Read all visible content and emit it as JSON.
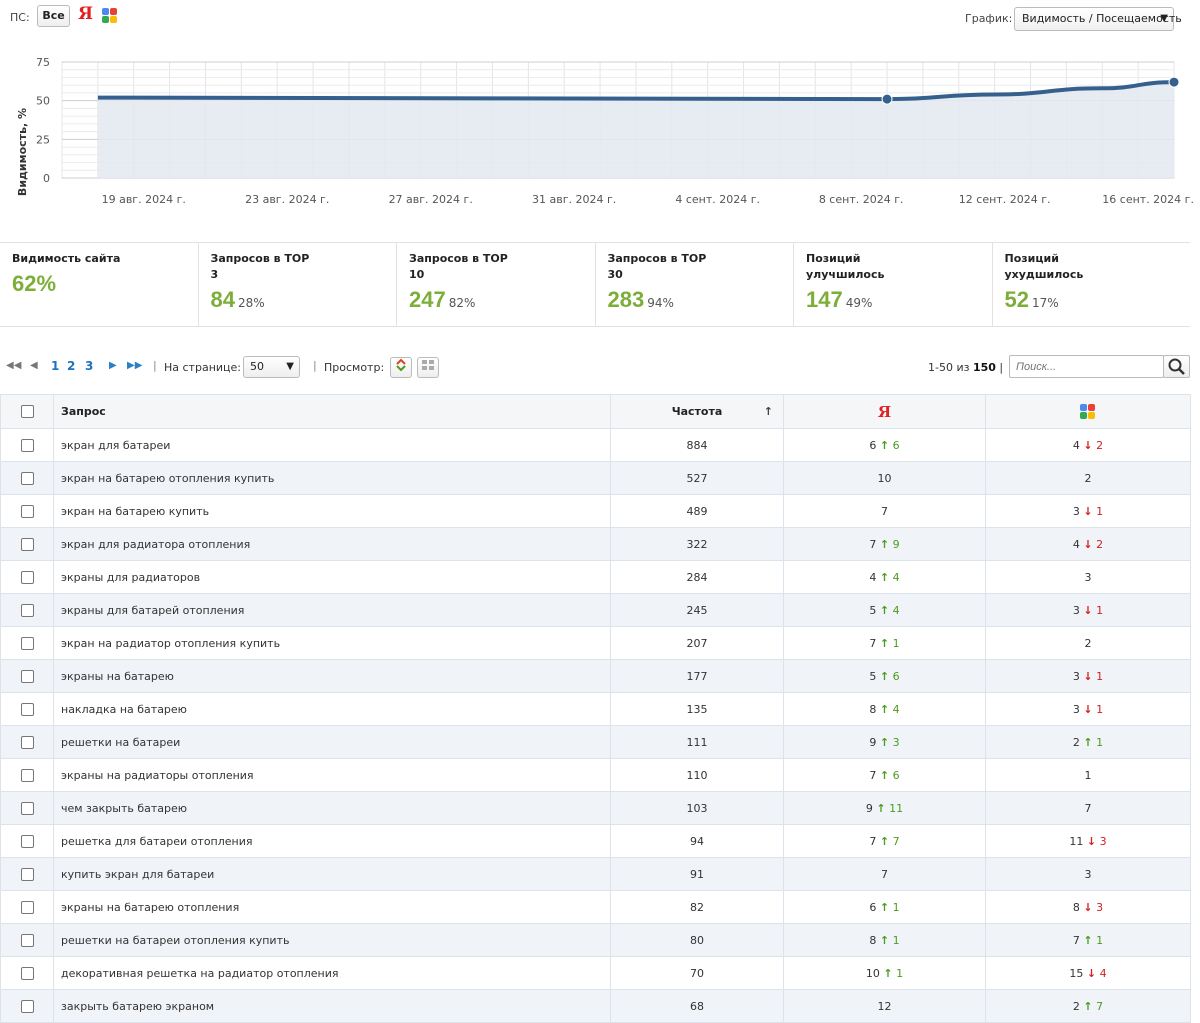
{
  "topbar": {
    "ps_label": "ПС:",
    "ps_all_label": "Все",
    "yandex_letter": "Я",
    "graph_label": "График:",
    "graph_select_value": "Видимость / Посещаемость"
  },
  "chart_data": {
    "type": "area",
    "ylabel": "Видимость, %",
    "yticks": [
      "0",
      "25",
      "50",
      "75"
    ],
    "ylim": [
      0,
      75
    ],
    "x_labels": [
      "19 авг. 2024 г.",
      "23 авг. 2024 г.",
      "27 авг. 2024 г.",
      "31 авг. 2024 г.",
      "4 сент. 2024 г.",
      "8 сент. 2024 г.",
      "12 сент. 2024 г.",
      "16 сент. 2024 г."
    ],
    "series": [
      {
        "x": [
          "2024-08-18",
          "2024-09-09",
          "2024-09-12",
          "2024-09-15",
          "2024-09-17"
        ],
        "values": [
          52,
          51,
          54,
          58,
          62
        ],
        "markers": [
          "2024-09-09",
          "2024-09-17"
        ]
      }
    ],
    "colors": {
      "line": "#35608e",
      "fill": "#e3e9f1"
    },
    "grid": true
  },
  "stats": [
    {
      "label": "Видимость сайта",
      "value": "62%",
      "pct": ""
    },
    {
      "label": "Запросов в TOP 3",
      "value": "84",
      "pct": "28%"
    },
    {
      "label": "Запросов в TOP 10",
      "value": "247",
      "pct": "82%"
    },
    {
      "label": "Запросов в TOP 30",
      "value": "283",
      "pct": "94%"
    },
    {
      "label": "Позиций улучшилось",
      "value": "147",
      "pct": "49%"
    },
    {
      "label": "Позиций ухудшилось",
      "value": "52",
      "pct": "17%"
    }
  ],
  "toolbar": {
    "pages": [
      "1",
      "2",
      "3"
    ],
    "per_page_label": "На странице:",
    "per_page_value": "50",
    "view_label": "Просмотр:",
    "range_prefix": "1-50 из",
    "range_total": "150",
    "search_placeholder": "Поиск..."
  },
  "table": {
    "headers": {
      "query": "Запрос",
      "freq": "Частота",
      "sort_arrow": "↑"
    },
    "rows": [
      {
        "q": "экран для батареи",
        "f": "884",
        "y": "6",
        "yd": "up",
        "yc": "6",
        "g": "4",
        "gd": "down",
        "gc": "2"
      },
      {
        "q": "экран на батарею отопления купить",
        "f": "527",
        "y": "10",
        "yd": "",
        "yc": "",
        "g": "2",
        "gd": "",
        "gc": ""
      },
      {
        "q": "экран на батарею купить",
        "f": "489",
        "y": "7",
        "yd": "",
        "yc": "",
        "g": "3",
        "gd": "down",
        "gc": "1"
      },
      {
        "q": "экран для радиатора отопления",
        "f": "322",
        "y": "7",
        "yd": "up",
        "yc": "9",
        "g": "4",
        "gd": "down",
        "gc": "2"
      },
      {
        "q": "экраны для радиаторов",
        "f": "284",
        "y": "4",
        "yd": "up",
        "yc": "4",
        "g": "3",
        "gd": "",
        "gc": ""
      },
      {
        "q": "экраны для батарей отопления",
        "f": "245",
        "y": "5",
        "yd": "up",
        "yc": "4",
        "g": "3",
        "gd": "down",
        "gc": "1"
      },
      {
        "q": "экран на радиатор отопления купить",
        "f": "207",
        "y": "7",
        "yd": "up",
        "yc": "1",
        "g": "2",
        "gd": "",
        "gc": ""
      },
      {
        "q": "экраны на батарею",
        "f": "177",
        "y": "5",
        "yd": "up",
        "yc": "6",
        "g": "3",
        "gd": "down",
        "gc": "1"
      },
      {
        "q": "накладка на батарею",
        "f": "135",
        "y": "8",
        "yd": "up",
        "yc": "4",
        "g": "3",
        "gd": "down",
        "gc": "1"
      },
      {
        "q": "решетки на батареи",
        "f": "111",
        "y": "9",
        "yd": "up",
        "yc": "3",
        "g": "2",
        "gd": "up",
        "gc": "1"
      },
      {
        "q": "экраны на радиаторы отопления",
        "f": "110",
        "y": "7",
        "yd": "up",
        "yc": "6",
        "g": "1",
        "gd": "",
        "gc": ""
      },
      {
        "q": "чем закрыть батарею",
        "f": "103",
        "y": "9",
        "yd": "up",
        "yc": "11",
        "g": "7",
        "gd": "",
        "gc": ""
      },
      {
        "q": "решетка для батареи отопления",
        "f": "94",
        "y": "7",
        "yd": "up",
        "yc": "7",
        "g": "11",
        "gd": "down",
        "gc": "3"
      },
      {
        "q": "купить экран для батареи",
        "f": "91",
        "y": "7",
        "yd": "",
        "yc": "",
        "g": "3",
        "gd": "",
        "gc": ""
      },
      {
        "q": "экраны на батарею отопления",
        "f": "82",
        "y": "6",
        "yd": "up",
        "yc": "1",
        "g": "8",
        "gd": "down",
        "gc": "3"
      },
      {
        "q": "решетки на батареи отопления купить",
        "f": "80",
        "y": "8",
        "yd": "up",
        "yc": "1",
        "g": "7",
        "gd": "up",
        "gc": "1"
      },
      {
        "q": "декоративная решетка на радиатор отопления",
        "f": "70",
        "y": "10",
        "yd": "up",
        "yc": "1",
        "g": "15",
        "gd": "down",
        "gc": "4"
      },
      {
        "q": "закрыть батарею экраном",
        "f": "68",
        "y": "12",
        "yd": "",
        "yc": "",
        "g": "2",
        "gd": "up",
        "gc": "7"
      }
    ]
  }
}
